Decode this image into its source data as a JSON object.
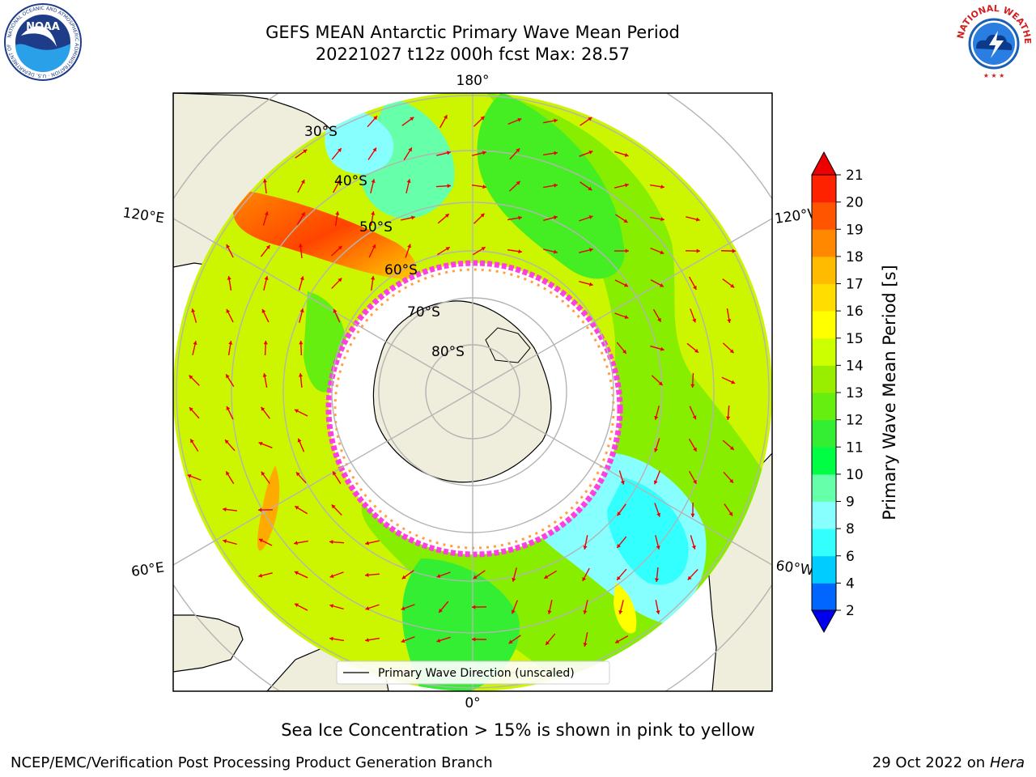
{
  "header": {
    "title_line1": "GEFS MEAN Antarctic Primary Wave Mean Period",
    "title_line2": "20221027 t12z 000h fcst   Max: 28.57"
  },
  "logos": {
    "left": {
      "name": "noaa-logo",
      "text": "NOAA",
      "ring_text": "NATIONAL OCEANIC AND ATMOSPHERIC ADMINISTRATION · U.S. DEPARTMENT OF COMMERCE"
    },
    "right": {
      "name": "nws-logo",
      "ring_text": "NATIONAL WEATHER SERVICE"
    }
  },
  "map": {
    "longitude_labels": {
      "top": "180°",
      "bottom": "0°",
      "upper_left": "120°E",
      "upper_right": "120°W",
      "lower_left": "60°E",
      "lower_right": "60°W"
    },
    "latitude_labels": [
      "30°S",
      "40°S",
      "50°S",
      "60°S",
      "70°S",
      "80°S"
    ],
    "legend_label": "Primary Wave Direction (unscaled)",
    "colors": {
      "land": "#efeddb",
      "grid": "#b4b4b4",
      "arrow": "#ee0000",
      "ice_edge": "#ff40e0",
      "ice_fringe": "#ffa040"
    }
  },
  "colorbar": {
    "label": "Primary Wave Mean Period [s]",
    "ticks": [
      "2",
      "4",
      "6",
      "8",
      "9",
      "10",
      "11",
      "12",
      "13",
      "14",
      "15",
      "16",
      "17",
      "18",
      "19",
      "20",
      "21"
    ],
    "colors": [
      "#0066ff",
      "#00ccff",
      "#33ffff",
      "#88ffff",
      "#66ffaa",
      "#00ff44",
      "#33ee33",
      "#66ee11",
      "#99ee00",
      "#ccff00",
      "#ffff00",
      "#ffdd00",
      "#ffbb00",
      "#ff8800",
      "#ff5500",
      "#ff2200"
    ],
    "under_color": "#0000ee",
    "over_color": "#ee0000"
  },
  "caption": "Sea Ice Concentration > 15% is shown in pink to yellow",
  "footer": {
    "left": "NCEP/EMC/Verification Post Processing Product Generation Branch",
    "right_date": "29 Oct 2022 on",
    "right_host": "Hera"
  }
}
